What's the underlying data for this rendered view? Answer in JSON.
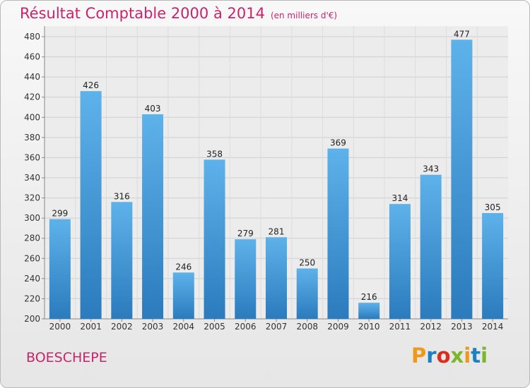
{
  "header": {
    "title": "Résultat Comptable 2000 à 2014",
    "unit_note": "(en milliers d'€)"
  },
  "footer": {
    "commune": "BOESCHEPE",
    "logo_text": "Proxiti"
  },
  "colors": {
    "title": "#c8246c",
    "bar_top": "#5eb2ea",
    "bar_bottom": "#2b7bbd",
    "logo_letters": [
      "#f0981a",
      "#1d80c3",
      "#d92e1f",
      "#7ab72a",
      "#f0981a",
      "#1d80c3",
      "#7ab72a"
    ]
  },
  "chart_data": {
    "type": "bar",
    "categories": [
      "2000",
      "2001",
      "2002",
      "2003",
      "2004",
      "2005",
      "2006",
      "2007",
      "2008",
      "2009",
      "2010",
      "2011",
      "2012",
      "2013",
      "2014"
    ],
    "values": [
      299,
      426,
      316,
      403,
      246,
      358,
      279,
      281,
      250,
      369,
      216,
      314,
      343,
      477,
      305
    ],
    "title": "Résultat Comptable 2000 à 2014",
    "subtitle": "(en milliers d'€)",
    "xlabel": "",
    "ylabel": "",
    "ylim": [
      200,
      480
    ],
    "yticks": [
      200,
      220,
      240,
      260,
      280,
      300,
      320,
      340,
      360,
      380,
      400,
      420,
      440,
      460,
      480
    ],
    "grid": true,
    "data_labels": true
  }
}
